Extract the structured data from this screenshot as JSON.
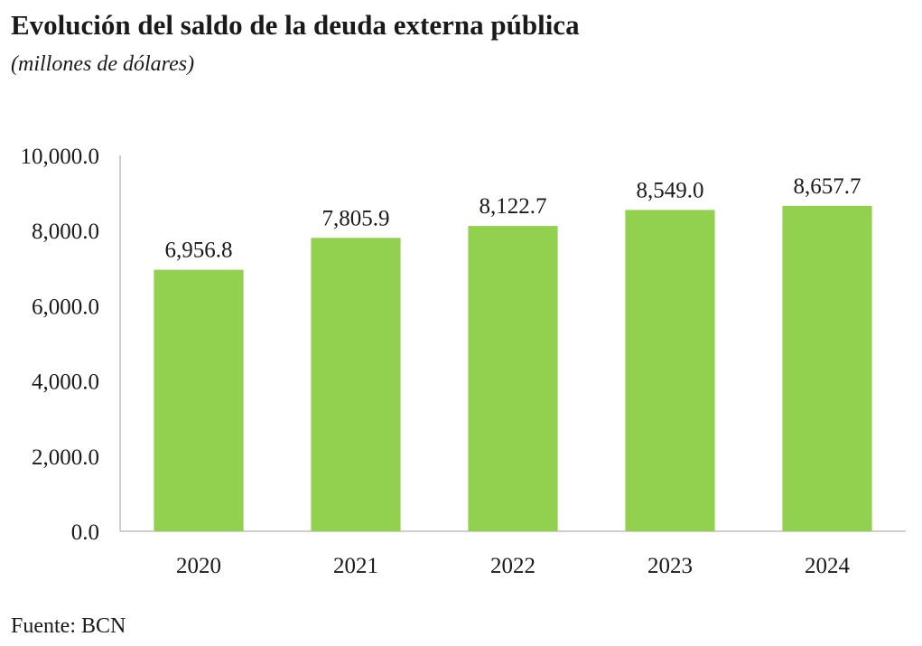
{
  "title": "Evolución del saldo de la deuda externa pública",
  "subtitle": "(millones de dólares)",
  "source": "Fuente: BCN",
  "colors": {
    "bar": "#92d050",
    "axis": "#bfbfbf",
    "text": "#1a1a1a"
  },
  "chart_data": {
    "type": "bar",
    "title": "Evolución del saldo de la deuda externa pública",
    "subtitle": "(millones de dólares)",
    "categories": [
      "2020",
      "2021",
      "2022",
      "2023",
      "2024"
    ],
    "values": [
      6956.8,
      7805.9,
      8122.7,
      8549.0,
      8657.7
    ],
    "data_labels": [
      "6,956.8",
      "7,805.9",
      "8,122.7",
      "8,549.0",
      "8,657.7"
    ],
    "y_ticks": [
      "0.0",
      "2,000.0",
      "4,000.0",
      "6,000.0",
      "8,000.0",
      "10,000.0"
    ],
    "ylim": [
      0,
      10000
    ],
    "grid": false,
    "legend": "none"
  }
}
